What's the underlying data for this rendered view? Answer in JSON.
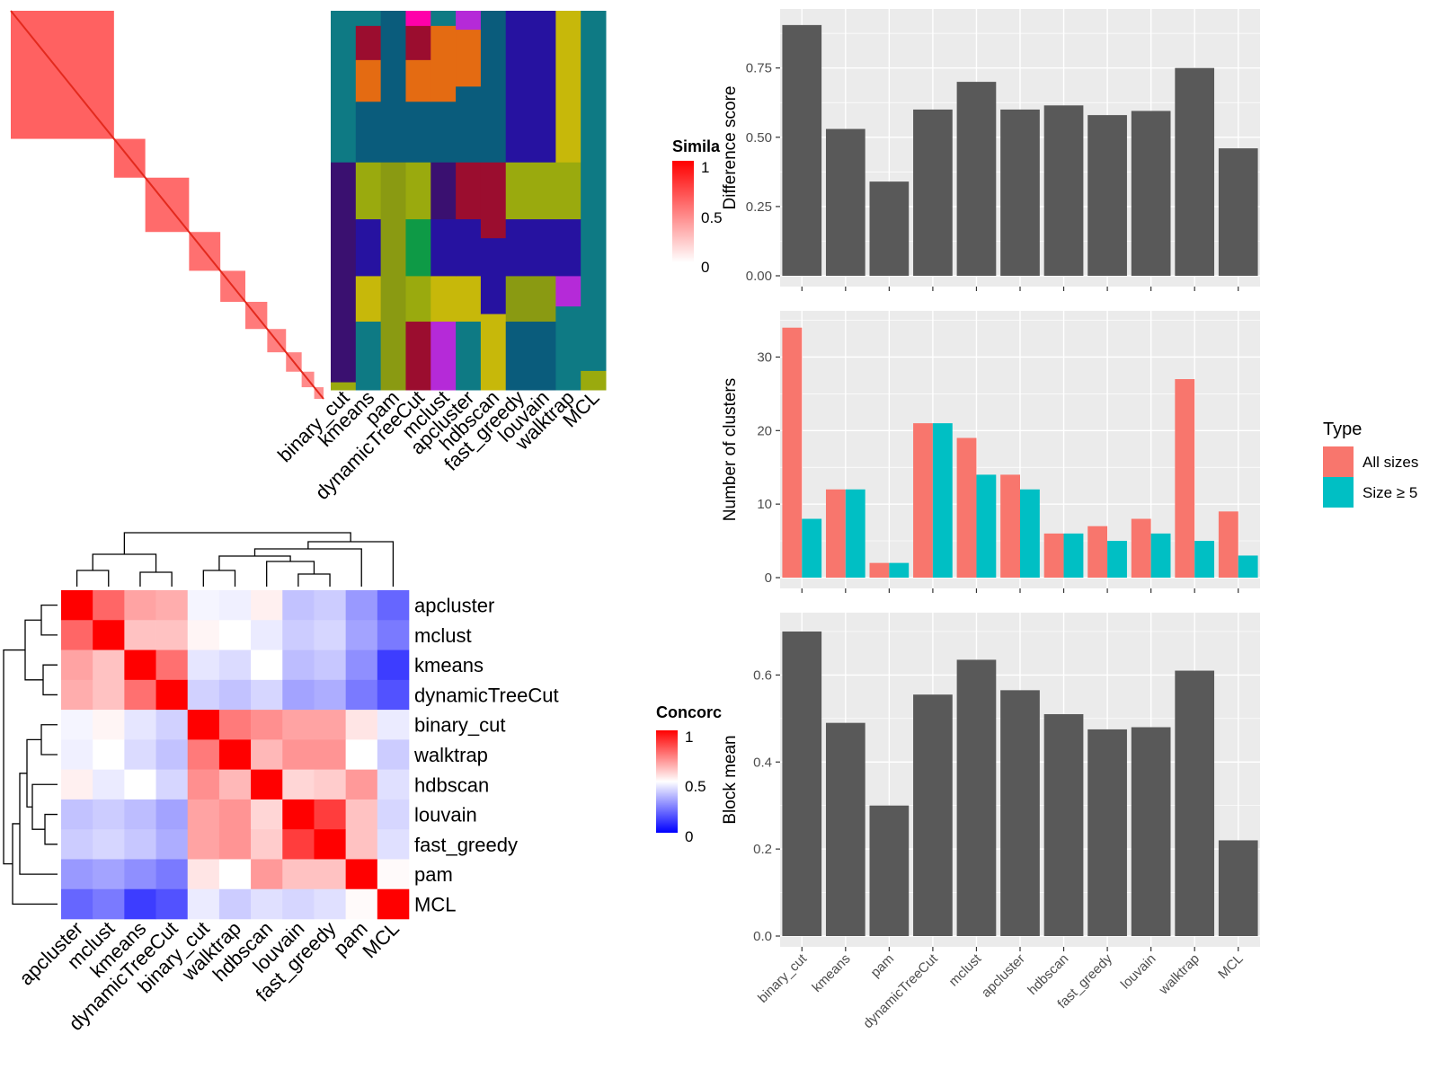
{
  "colors": {
    "panel_bg": "#ebebeb",
    "grid": "#ffffff",
    "bar_gray": "#595959",
    "all_sizes": "#f8766d",
    "size_ge_5": "#00bfc4",
    "sim_high": "#ff0000",
    "sim_low": "#ffffff",
    "conc_high": "#ff0000",
    "conc_mid": "#ffffff",
    "conc_low": "#0000ff",
    "class_palette": [
      "#0e7a84",
      "#9b0d2f",
      "#e46b12",
      "#0a5c7c",
      "#9aaa0e",
      "#2612a0",
      "#0e9a46",
      "#b52ad8",
      "#c7b80a",
      "#8a9a12",
      "#3a1070",
      "#ff00aa"
    ]
  },
  "similarity_heatmap": {
    "legend_title": "Simila",
    "legend_ticks": [
      "1",
      "0.5",
      "0"
    ],
    "blocks": [
      0.33,
      0.1,
      0.14,
      0.1,
      0.08,
      0.07,
      0.06,
      0.05,
      0.04,
      0.03
    ]
  },
  "classes_heatmap": {
    "methods": [
      "binary_cut",
      "kmeans",
      "pam",
      "dynamicTreeCut",
      "mclust",
      "apcluster",
      "hdbscan",
      "fast_greedy",
      "louvain",
      "walktrap",
      "MCL"
    ],
    "segments": [
      [
        [
          0.0,
          0.4,
          0
        ],
        [
          0.4,
          0.98,
          10
        ],
        [
          0.98,
          1.0,
          4
        ]
      ],
      [
        [
          0.0,
          0.04,
          0
        ],
        [
          0.04,
          0.13,
          1
        ],
        [
          0.13,
          0.24,
          2
        ],
        [
          0.24,
          0.4,
          3
        ],
        [
          0.4,
          0.55,
          4
        ],
        [
          0.55,
          0.7,
          5
        ],
        [
          0.7,
          0.82,
          8
        ],
        [
          0.82,
          1.0,
          0
        ]
      ],
      [
        [
          0.0,
          0.4,
          3
        ],
        [
          0.4,
          1.0,
          9
        ]
      ],
      [
        [
          0.0,
          0.04,
          11
        ],
        [
          0.04,
          0.13,
          1
        ],
        [
          0.13,
          0.24,
          2
        ],
        [
          0.24,
          0.4,
          3
        ],
        [
          0.4,
          0.55,
          4
        ],
        [
          0.55,
          0.7,
          6
        ],
        [
          0.7,
          0.82,
          4
        ],
        [
          0.82,
          1.0,
          1
        ]
      ],
      [
        [
          0.0,
          0.04,
          0
        ],
        [
          0.04,
          0.24,
          2
        ],
        [
          0.24,
          0.4,
          3
        ],
        [
          0.4,
          0.55,
          10
        ],
        [
          0.55,
          0.7,
          5
        ],
        [
          0.7,
          0.82,
          8
        ],
        [
          0.82,
          1.0,
          7
        ]
      ],
      [
        [
          0.0,
          0.05,
          7
        ],
        [
          0.05,
          0.2,
          2
        ],
        [
          0.2,
          0.4,
          3
        ],
        [
          0.4,
          0.55,
          1
        ],
        [
          0.55,
          0.7,
          5
        ],
        [
          0.7,
          0.82,
          8
        ],
        [
          0.82,
          1.0,
          0
        ]
      ],
      [
        [
          0.0,
          0.4,
          3
        ],
        [
          0.4,
          0.6,
          1
        ],
        [
          0.6,
          0.8,
          5
        ],
        [
          0.8,
          1.0,
          8
        ]
      ],
      [
        [
          0.0,
          0.4,
          5
        ],
        [
          0.4,
          0.55,
          4
        ],
        [
          0.55,
          0.7,
          5
        ],
        [
          0.7,
          0.82,
          9
        ],
        [
          0.82,
          1.0,
          3
        ]
      ],
      [
        [
          0.0,
          0.4,
          5
        ],
        [
          0.4,
          0.55,
          4
        ],
        [
          0.55,
          0.7,
          5
        ],
        [
          0.7,
          0.82,
          9
        ],
        [
          0.82,
          1.0,
          3
        ]
      ],
      [
        [
          0.0,
          0.4,
          8
        ],
        [
          0.4,
          0.55,
          4
        ],
        [
          0.55,
          0.7,
          5
        ],
        [
          0.7,
          0.78,
          7
        ],
        [
          0.78,
          1.0,
          0
        ]
      ],
      [
        [
          0.0,
          0.95,
          0
        ],
        [
          0.95,
          1.0,
          4
        ]
      ]
    ]
  },
  "concordance_heatmap": {
    "legend_title": "Concorc",
    "legend_ticks": [
      "1",
      "0.5",
      "0"
    ],
    "rows": [
      "apcluster",
      "mclust",
      "kmeans",
      "dynamicTreeCut",
      "binary_cut",
      "walktrap",
      "hdbscan",
      "louvain",
      "fast_greedy",
      "pam",
      "MCL"
    ],
    "cols": [
      "apcluster",
      "mclust",
      "kmeans",
      "dynamicTreeCut",
      "binary_cut",
      "walktrap",
      "hdbscan",
      "louvain",
      "fast_greedy",
      "pam",
      "MCL"
    ],
    "matrix": [
      [
        1.0,
        0.8,
        0.68,
        0.66,
        0.48,
        0.47,
        0.53,
        0.38,
        0.4,
        0.3,
        0.2
      ],
      [
        0.8,
        1.0,
        0.62,
        0.62,
        0.52,
        0.5,
        0.46,
        0.4,
        0.42,
        0.32,
        0.24
      ],
      [
        0.68,
        0.62,
        1.0,
        0.78,
        0.45,
        0.43,
        0.5,
        0.37,
        0.39,
        0.28,
        0.12
      ],
      [
        0.66,
        0.62,
        0.78,
        1.0,
        0.41,
        0.38,
        0.42,
        0.32,
        0.34,
        0.24,
        0.16
      ],
      [
        0.48,
        0.52,
        0.45,
        0.41,
        1.0,
        0.76,
        0.72,
        0.68,
        0.68,
        0.55,
        0.46
      ],
      [
        0.47,
        0.5,
        0.43,
        0.38,
        0.76,
        1.0,
        0.64,
        0.71,
        0.71,
        0.5,
        0.4
      ],
      [
        0.53,
        0.46,
        0.5,
        0.42,
        0.72,
        0.64,
        1.0,
        0.58,
        0.6,
        0.7,
        0.44
      ],
      [
        0.38,
        0.4,
        0.37,
        0.32,
        0.68,
        0.71,
        0.58,
        1.0,
        0.88,
        0.62,
        0.42
      ],
      [
        0.4,
        0.42,
        0.39,
        0.34,
        0.68,
        0.71,
        0.6,
        0.88,
        1.0,
        0.62,
        0.44
      ],
      [
        0.3,
        0.32,
        0.28,
        0.24,
        0.55,
        0.5,
        0.7,
        0.62,
        0.62,
        1.0,
        0.51
      ],
      [
        0.2,
        0.24,
        0.12,
        0.16,
        0.46,
        0.4,
        0.44,
        0.42,
        0.44,
        0.51,
        1.0
      ]
    ]
  },
  "chart_data": [
    {
      "type": "bar",
      "categories": [
        "binary_cut",
        "kmeans",
        "pam",
        "dynamicTreeCut",
        "mclust",
        "apcluster",
        "hdbscan",
        "fast_greedy",
        "louvain",
        "walktrap",
        "MCL"
      ],
      "values": [
        0.905,
        0.53,
        0.34,
        0.6,
        0.7,
        0.6,
        0.615,
        0.58,
        0.595,
        0.75,
        0.46
      ],
      "title": "",
      "xlabel": "",
      "ylabel": "Difference score",
      "ylim": [
        0,
        0.95
      ],
      "yticks": [
        0.0,
        0.25,
        0.5,
        0.75
      ],
      "ytick_labels": [
        "0.00",
        "0.25",
        "0.50",
        "0.75"
      ],
      "grid": true
    },
    {
      "type": "bar",
      "categories": [
        "binary_cut",
        "kmeans",
        "pam",
        "dynamicTreeCut",
        "mclust",
        "apcluster",
        "hdbscan",
        "fast_greedy",
        "louvain",
        "walktrap",
        "MCL"
      ],
      "series": [
        {
          "name": "All sizes",
          "values": [
            34,
            12,
            2,
            21,
            19,
            14,
            6,
            7,
            8,
            27,
            9
          ]
        },
        {
          "name": "Size ≥ 5",
          "values": [
            8,
            12,
            2,
            21,
            14,
            12,
            6,
            5,
            6,
            5,
            3
          ]
        }
      ],
      "title": "",
      "xlabel": "",
      "ylabel": "Number of clusters",
      "ylim": [
        0,
        35.8
      ],
      "yticks": [
        0,
        10,
        20,
        30
      ],
      "ytick_labels": [
        "0",
        "10",
        "20",
        "30"
      ],
      "legend_title": "Type",
      "legend_position": "right",
      "grid": true
    },
    {
      "type": "bar",
      "categories": [
        "binary_cut",
        "kmeans",
        "pam",
        "dynamicTreeCut",
        "mclust",
        "apcluster",
        "hdbscan",
        "fast_greedy",
        "louvain",
        "walktrap",
        "MCL"
      ],
      "values": [
        0.7,
        0.49,
        0.3,
        0.555,
        0.635,
        0.565,
        0.51,
        0.475,
        0.48,
        0.61,
        0.22
      ],
      "title": "",
      "xlabel": "",
      "ylabel": "Block mean",
      "ylim": [
        0,
        0.735
      ],
      "yticks": [
        0.0,
        0.2,
        0.4,
        0.6
      ],
      "ytick_labels": [
        "0.0",
        "0.2",
        "0.4",
        "0.6"
      ],
      "grid": true
    }
  ]
}
